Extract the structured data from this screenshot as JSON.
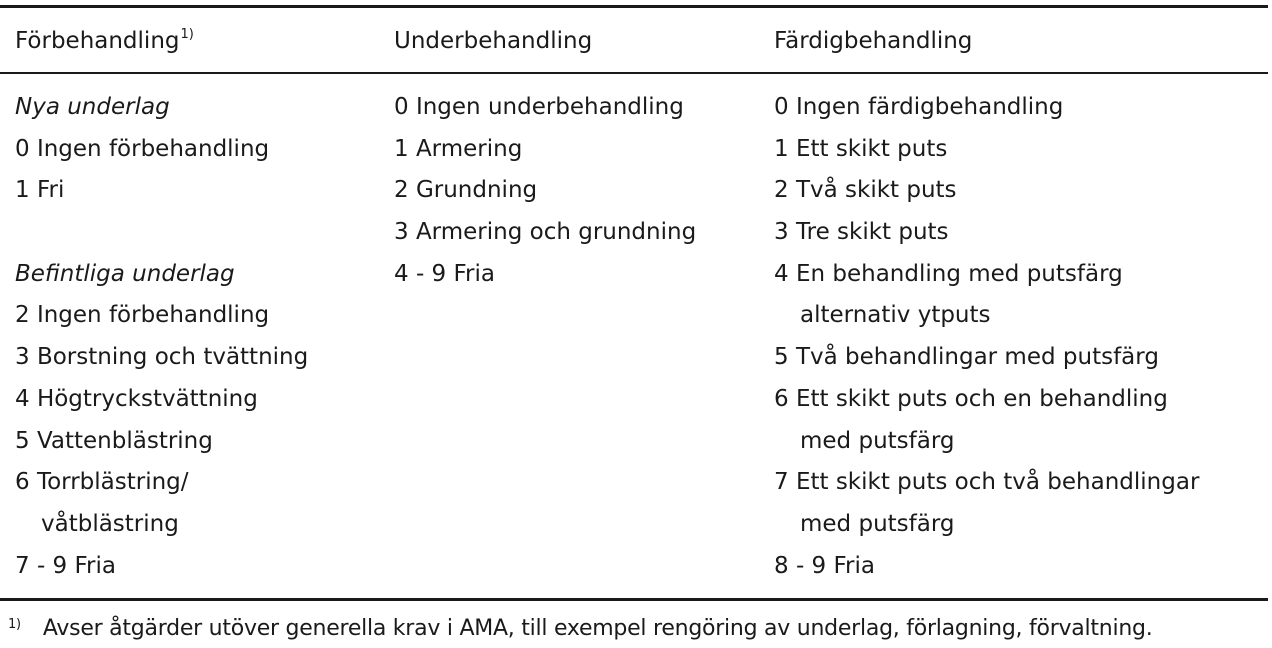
{
  "table": {
    "headers": {
      "col1": "Förbehandling",
      "col1_note": "1)",
      "col2": "Underbehandling",
      "col3": "Färdigbehandling"
    },
    "col1_lines": [
      "Nya underlag",
      "0 Ingen förbehandling",
      "1  Fri",
      "",
      "Befintliga underlag",
      "2 Ingen förbehandling",
      "3 Borstning och tvättning",
      "4 Högtryckstvättning",
      "5 Vattenblästring",
      "6 Torrblästring/",
      "våtblästring",
      "7 - 9  Fria"
    ],
    "col2_lines": [
      "0 Ingen underbehandling",
      "1  Armering",
      "2 Grundning",
      "3 Armering och grundning",
      "4 - 9  Fria"
    ],
    "col3_lines": [
      "0 Ingen färdigbehandling",
      "1  Ett skikt puts",
      "2 Två skikt puts",
      "3 Tre skikt puts",
      "4 En behandling med putsfärg",
      "alternativ ytputs",
      "5 Två behandlingar med putsfärg",
      "6 Ett skikt puts och en behandling",
      "med putsfärg",
      "7 Ett skikt puts och två behandlingar",
      "med putsfärg",
      "8 - 9  Fria"
    ]
  },
  "footnote": {
    "marker": "1)",
    "text": "Avser åtgärder utöver generella krav i AMA, till exempel rengöring av underlag, förlagning, förvaltning."
  }
}
